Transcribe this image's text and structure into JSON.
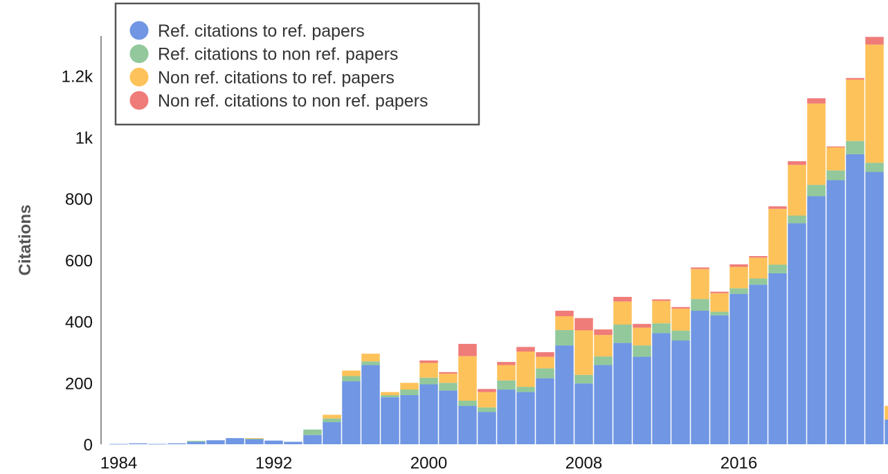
{
  "chart_data": {
    "type": "bar",
    "stacked": true,
    "ylabel": "Citations",
    "xlabel": "",
    "title": "",
    "ylim": [
      0,
      1330
    ],
    "yticks": [
      {
        "value": 0,
        "label": "0"
      },
      {
        "value": 200,
        "label": "200"
      },
      {
        "value": 400,
        "label": "400"
      },
      {
        "value": 600,
        "label": "600"
      },
      {
        "value": 800,
        "label": "800"
      },
      {
        "value": 1000,
        "label": "1k"
      },
      {
        "value": 1200,
        "label": "1.2k"
      }
    ],
    "xticks": [
      1984,
      1992,
      2000,
      2008,
      2016
    ],
    "legend_position": "top-left",
    "categories": [
      1984,
      1985,
      1986,
      1987,
      1988,
      1989,
      1990,
      1991,
      1992,
      1993,
      1994,
      1995,
      1996,
      1997,
      1998,
      1999,
      2000,
      2001,
      2002,
      2003,
      2004,
      2005,
      2006,
      2007,
      2008,
      2009,
      2010,
      2011,
      2012,
      2013,
      2014,
      2015,
      2016,
      2017,
      2018,
      2019,
      2020,
      2021,
      2022,
      2023
    ],
    "series": [
      {
        "name": "Ref. citations to ref. papers",
        "color": "#7096e4",
        "values": [
          1,
          3,
          1,
          3,
          8,
          13,
          20,
          17,
          12,
          8,
          30,
          72,
          205,
          258,
          153,
          160,
          195,
          175,
          125,
          105,
          178,
          170,
          215,
          322,
          198,
          258,
          330,
          285,
          362,
          338,
          435,
          420,
          490,
          520,
          557,
          720,
          808,
          860,
          945,
          887
        ]
      },
      {
        "name": "Ref. citations to non ref. papers",
        "color": "#92c89b",
        "values": [
          0,
          0,
          0,
          0,
          3,
          0,
          0,
          1,
          0,
          0,
          18,
          12,
          17,
          12,
          7,
          18,
          22,
          25,
          17,
          15,
          30,
          17,
          32,
          50,
          28,
          28,
          60,
          37,
          32,
          32,
          38,
          12,
          18,
          20,
          28,
          25,
          37,
          32,
          43,
          30
        ]
      },
      {
        "name": "Non ref. citations to ref. papers",
        "color": "#fec25a",
        "values": [
          0,
          0,
          0,
          0,
          0,
          0,
          0,
          2,
          0,
          0,
          0,
          12,
          18,
          25,
          10,
          22,
          48,
          30,
          145,
          50,
          50,
          115,
          38,
          45,
          145,
          70,
          75,
          58,
          73,
          72,
          98,
          60,
          70,
          68,
          182,
          165,
          265,
          75,
          200,
          385
        ]
      },
      {
        "name": "Non ref. citations to non ref. papers",
        "color": "#ef7c79",
        "values": [
          0,
          0,
          0,
          0,
          0,
          0,
          0,
          0,
          0,
          0,
          0,
          0,
          0,
          0,
          0,
          0,
          8,
          5,
          40,
          10,
          10,
          15,
          15,
          18,
          40,
          18,
          15,
          12,
          5,
          5,
          5,
          5,
          8,
          5,
          8,
          12,
          17,
          3,
          5,
          25
        ]
      }
    ],
    "partial_bar": {
      "category": 2024,
      "values": [
        80,
        0,
        45,
        0
      ]
    }
  }
}
